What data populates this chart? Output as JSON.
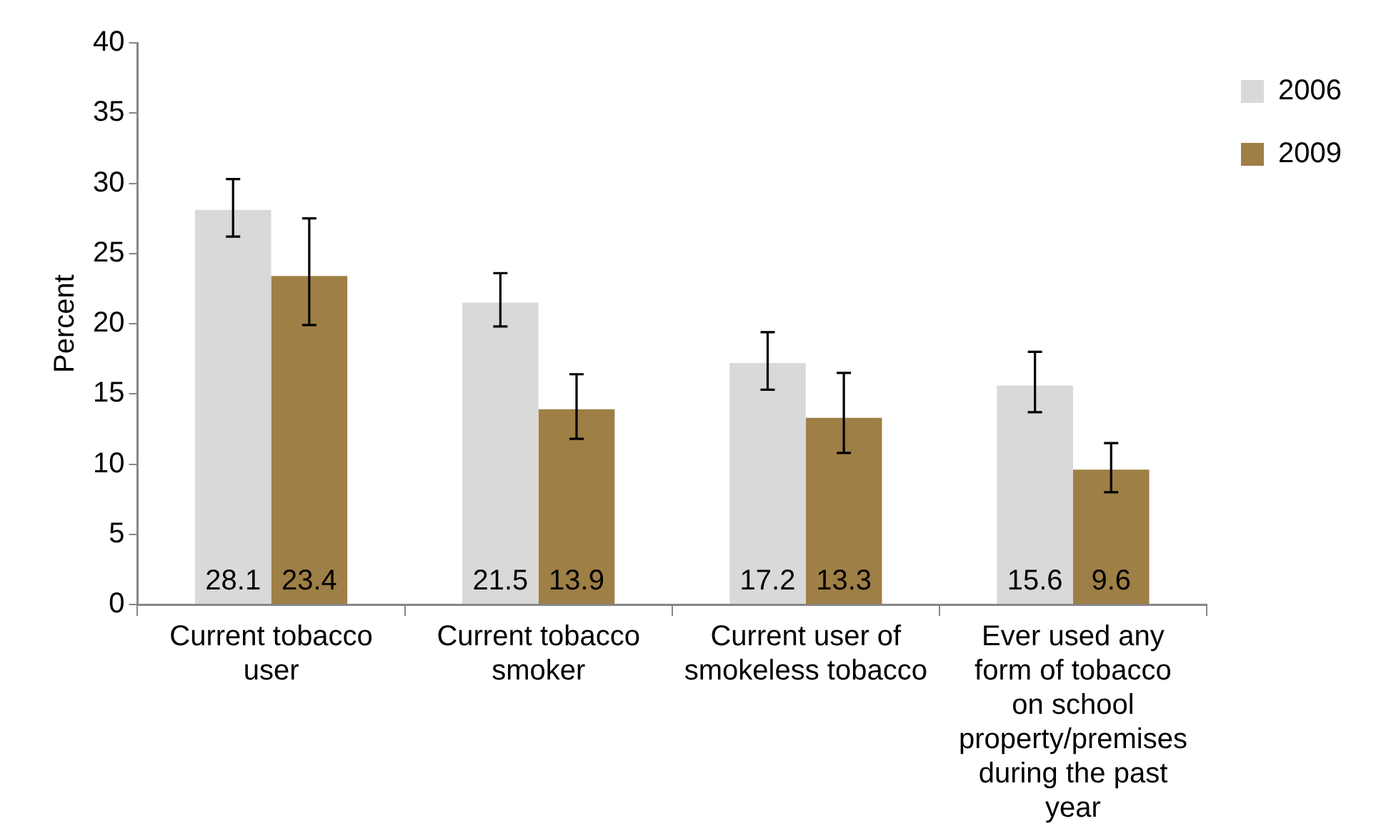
{
  "chart_data": {
    "type": "bar",
    "ylabel": "Percent",
    "categories": [
      "Current tobacco user",
      "Current tobacco smoker",
      "Current user of smokeless tobacco",
      "Ever used any form of tobacco on school property/premises during the past year"
    ],
    "series": [
      {
        "name": "2006",
        "color": "#d9d9d9",
        "values": [
          28.1,
          21.5,
          17.2,
          15.6
        ],
        "errors": [
          [
            26.2,
            30.3
          ],
          [
            19.8,
            23.6
          ],
          [
            15.3,
            19.4
          ],
          [
            13.7,
            18.0
          ]
        ]
      },
      {
        "name": "2009",
        "color": "#9e7f45",
        "values": [
          23.4,
          13.9,
          13.3,
          9.6
        ],
        "errors": [
          [
            19.9,
            27.5
          ],
          [
            11.8,
            16.4
          ],
          [
            10.8,
            16.5
          ],
          [
            8.0,
            11.5
          ]
        ]
      }
    ],
    "ylim": [
      0,
      40
    ],
    "yticks": [
      0,
      5,
      10,
      15,
      20,
      25,
      30,
      35,
      40
    ],
    "grid": false,
    "legend": "top right",
    "data_labels": true
  }
}
